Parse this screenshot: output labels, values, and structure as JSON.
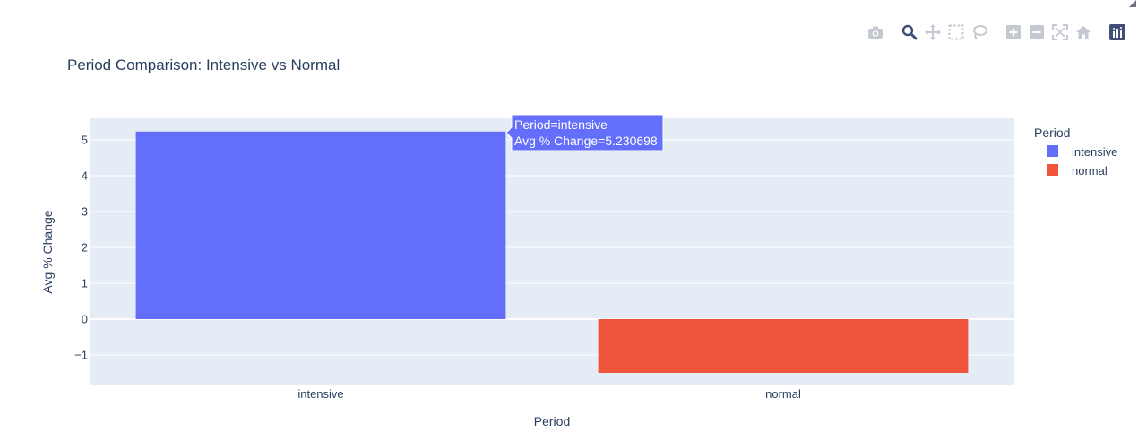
{
  "chart_data": {
    "type": "bar",
    "title": "Period Comparison: Intensive vs Normal",
    "xlabel": "Period",
    "ylabel": "Avg % Change",
    "categories": [
      "intensive",
      "normal"
    ],
    "series": [
      {
        "name": "intensive",
        "category": "intensive",
        "value": 5.230698,
        "color": "#636efa"
      },
      {
        "name": "normal",
        "category": "normal",
        "value": -1.5,
        "color": "#ef553b"
      }
    ],
    "ylim": [
      -1.85,
      5.6
    ],
    "yticks": [
      -1,
      0,
      1,
      2,
      3,
      4,
      5
    ],
    "ytick_labels": [
      "−1",
      "0",
      "1",
      "2",
      "3",
      "4",
      "5"
    ],
    "grid": true,
    "legend": {
      "title": "Period",
      "placement": "top-right"
    },
    "hover": {
      "line1": "Period=intensive",
      "line2": "Avg % Change=5.230698"
    }
  },
  "colors": {
    "plot_bg": "#e5ecf6",
    "paper_bg": "#ffffff",
    "text": "#2a3f5f",
    "modebar_icon": "#c4c8d0",
    "logo_bg": "#3f4f75"
  },
  "modebar": {
    "buttons": [
      "camera-icon",
      "zoom-icon",
      "pan-icon",
      "box-select-icon",
      "lasso-icon",
      "zoom-in-icon",
      "zoom-out-icon",
      "autoscale-icon",
      "reset-axes-icon",
      "plotly-logo-icon"
    ]
  }
}
